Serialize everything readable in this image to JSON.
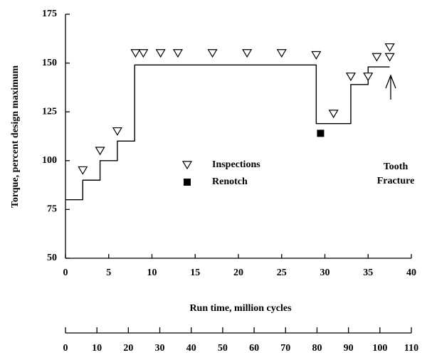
{
  "chart_data": {
    "type": "line",
    "xlabel": "Run time, million cycles",
    "ylabel": "Torque, percent design maximum",
    "xlim": [
      0,
      40
    ],
    "xticks": [
      0,
      5,
      10,
      15,
      20,
      25,
      30,
      35,
      40
    ],
    "ylim": [
      50,
      175
    ],
    "yticks": [
      50,
      75,
      100,
      125,
      150,
      175
    ],
    "x2lim": [
      0,
      110
    ],
    "x2ticks": [
      0,
      10,
      20,
      30,
      40,
      50,
      60,
      70,
      80,
      90,
      100,
      110
    ],
    "series": [
      {
        "type": "line",
        "color": "#000000",
        "x": [
          0,
          2,
          2,
          4,
          4,
          6,
          6,
          8,
          8,
          29,
          29,
          33,
          33,
          35,
          35,
          37.5
        ],
        "y": [
          80,
          80,
          90,
          90,
          100,
          100,
          110,
          110,
          149,
          149,
          119,
          119,
          139,
          139,
          148,
          148
        ]
      },
      {
        "type": "scatter",
        "name": "Inspections",
        "marker": "triangle-down",
        "color": "#000000",
        "x": [
          2,
          4,
          6,
          8.1,
          9,
          11,
          13,
          17,
          21,
          25,
          29,
          31,
          33,
          35,
          36,
          37.5,
          37.5
        ],
        "y": [
          95,
          105,
          115,
          155,
          155,
          155,
          155,
          155,
          155,
          155,
          154,
          124,
          143,
          143,
          153,
          153,
          158
        ]
      },
      {
        "type": "scatter",
        "name": "Renotch",
        "marker": "square",
        "color": "#000000",
        "x": [
          29.5
        ],
        "y": [
          114
        ]
      }
    ],
    "annotation": [
      "Tooth",
      "Fracture"
    ]
  }
}
